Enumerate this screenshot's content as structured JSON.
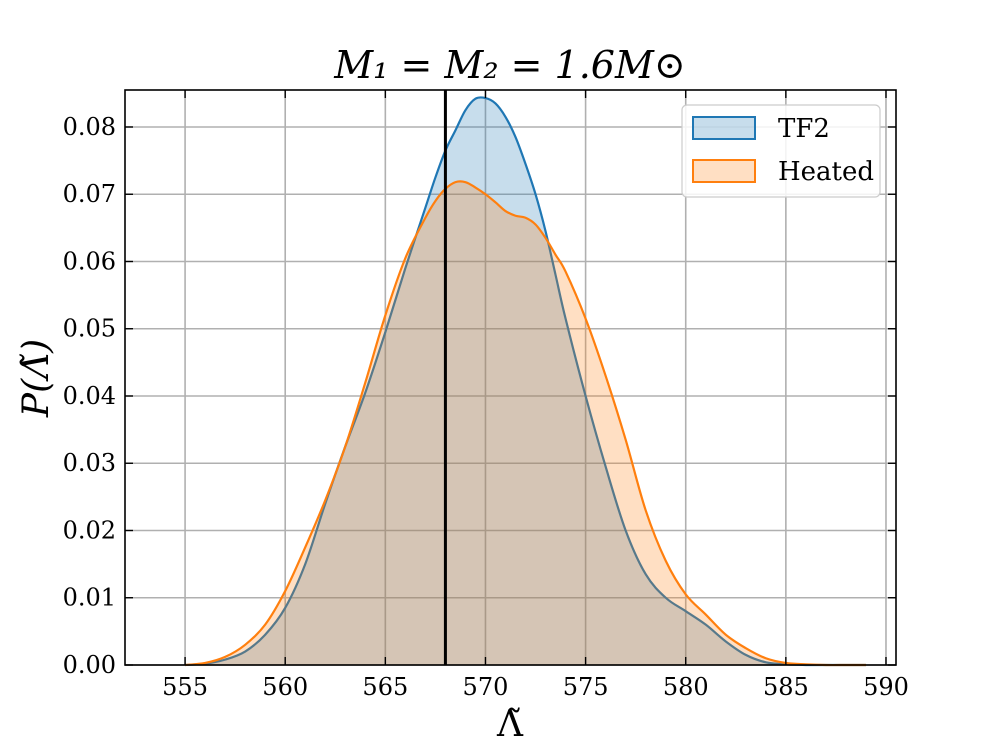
{
  "chart_data": {
    "type": "area",
    "title": "M₁ = M₂ = 1.6M⊙",
    "xlabel": "Λ̃",
    "ylabel": "P(Λ̃)",
    "xlim": [
      552,
      590.5
    ],
    "ylim": [
      0,
      0.0855
    ],
    "x_ticks": [
      555,
      560,
      565,
      570,
      575,
      580,
      585,
      590
    ],
    "y_ticks": [
      0.0,
      0.01,
      0.02,
      0.03,
      0.04,
      0.05,
      0.06,
      0.07,
      0.08
    ],
    "y_tick_labels": [
      "0.00",
      "0.01",
      "0.02",
      "0.03",
      "0.04",
      "0.05",
      "0.06",
      "0.07",
      "0.08"
    ],
    "grid": true,
    "legend_position": "top-right",
    "vertical_line_x": 568,
    "series": [
      {
        "name": "TF2",
        "color": "#1f77b4",
        "fill": "#1f77b4",
        "fill_opacity": 0.25,
        "x": [
          555,
          556,
          557,
          558,
          559,
          560,
          561,
          562,
          563,
          564,
          565,
          566,
          567,
          567.5,
          568,
          568.5,
          569,
          569.5,
          570,
          570.5,
          571,
          571.5,
          572,
          572.5,
          573,
          573.5,
          574,
          575,
          576,
          577,
          578,
          579,
          580,
          581,
          582,
          583,
          584,
          585,
          586,
          587,
          588,
          589
        ],
        "y": [
          0.0,
          0.0002,
          0.0008,
          0.002,
          0.0045,
          0.0085,
          0.015,
          0.024,
          0.0325,
          0.0405,
          0.0495,
          0.059,
          0.068,
          0.0725,
          0.0765,
          0.0795,
          0.0825,
          0.0842,
          0.0843,
          0.0835,
          0.0815,
          0.0785,
          0.0745,
          0.07,
          0.0645,
          0.058,
          0.0515,
          0.04,
          0.0295,
          0.02,
          0.0135,
          0.01,
          0.008,
          0.006,
          0.0035,
          0.0015,
          0.0004,
          0.0001,
          0.0,
          0.0,
          0.0,
          0.0
        ]
      },
      {
        "name": "Heated",
        "color": "#ff7f0e",
        "fill": "#ff7f0e",
        "fill_opacity": 0.25,
        "x": [
          555,
          556,
          557,
          558,
          559,
          560,
          561,
          562,
          563,
          564,
          565,
          566,
          567,
          567.5,
          568,
          568.5,
          569,
          569.5,
          570,
          570.5,
          571,
          571.5,
          572,
          572.5,
          573,
          573.5,
          574,
          575,
          576,
          577,
          578,
          579,
          580,
          581,
          582,
          583,
          584,
          585,
          586,
          587,
          588,
          589
        ],
        "y": [
          0.0,
          0.0003,
          0.0012,
          0.003,
          0.006,
          0.011,
          0.0175,
          0.0245,
          0.0325,
          0.042,
          0.052,
          0.0605,
          0.0665,
          0.069,
          0.0708,
          0.0718,
          0.0718,
          0.071,
          0.07,
          0.0688,
          0.0675,
          0.0668,
          0.0665,
          0.0655,
          0.0635,
          0.061,
          0.0585,
          0.0515,
          0.043,
          0.0335,
          0.023,
          0.0155,
          0.0105,
          0.0075,
          0.0045,
          0.0025,
          0.001,
          0.0003,
          0.0001,
          0.0,
          0.0,
          0.0
        ]
      }
    ]
  }
}
